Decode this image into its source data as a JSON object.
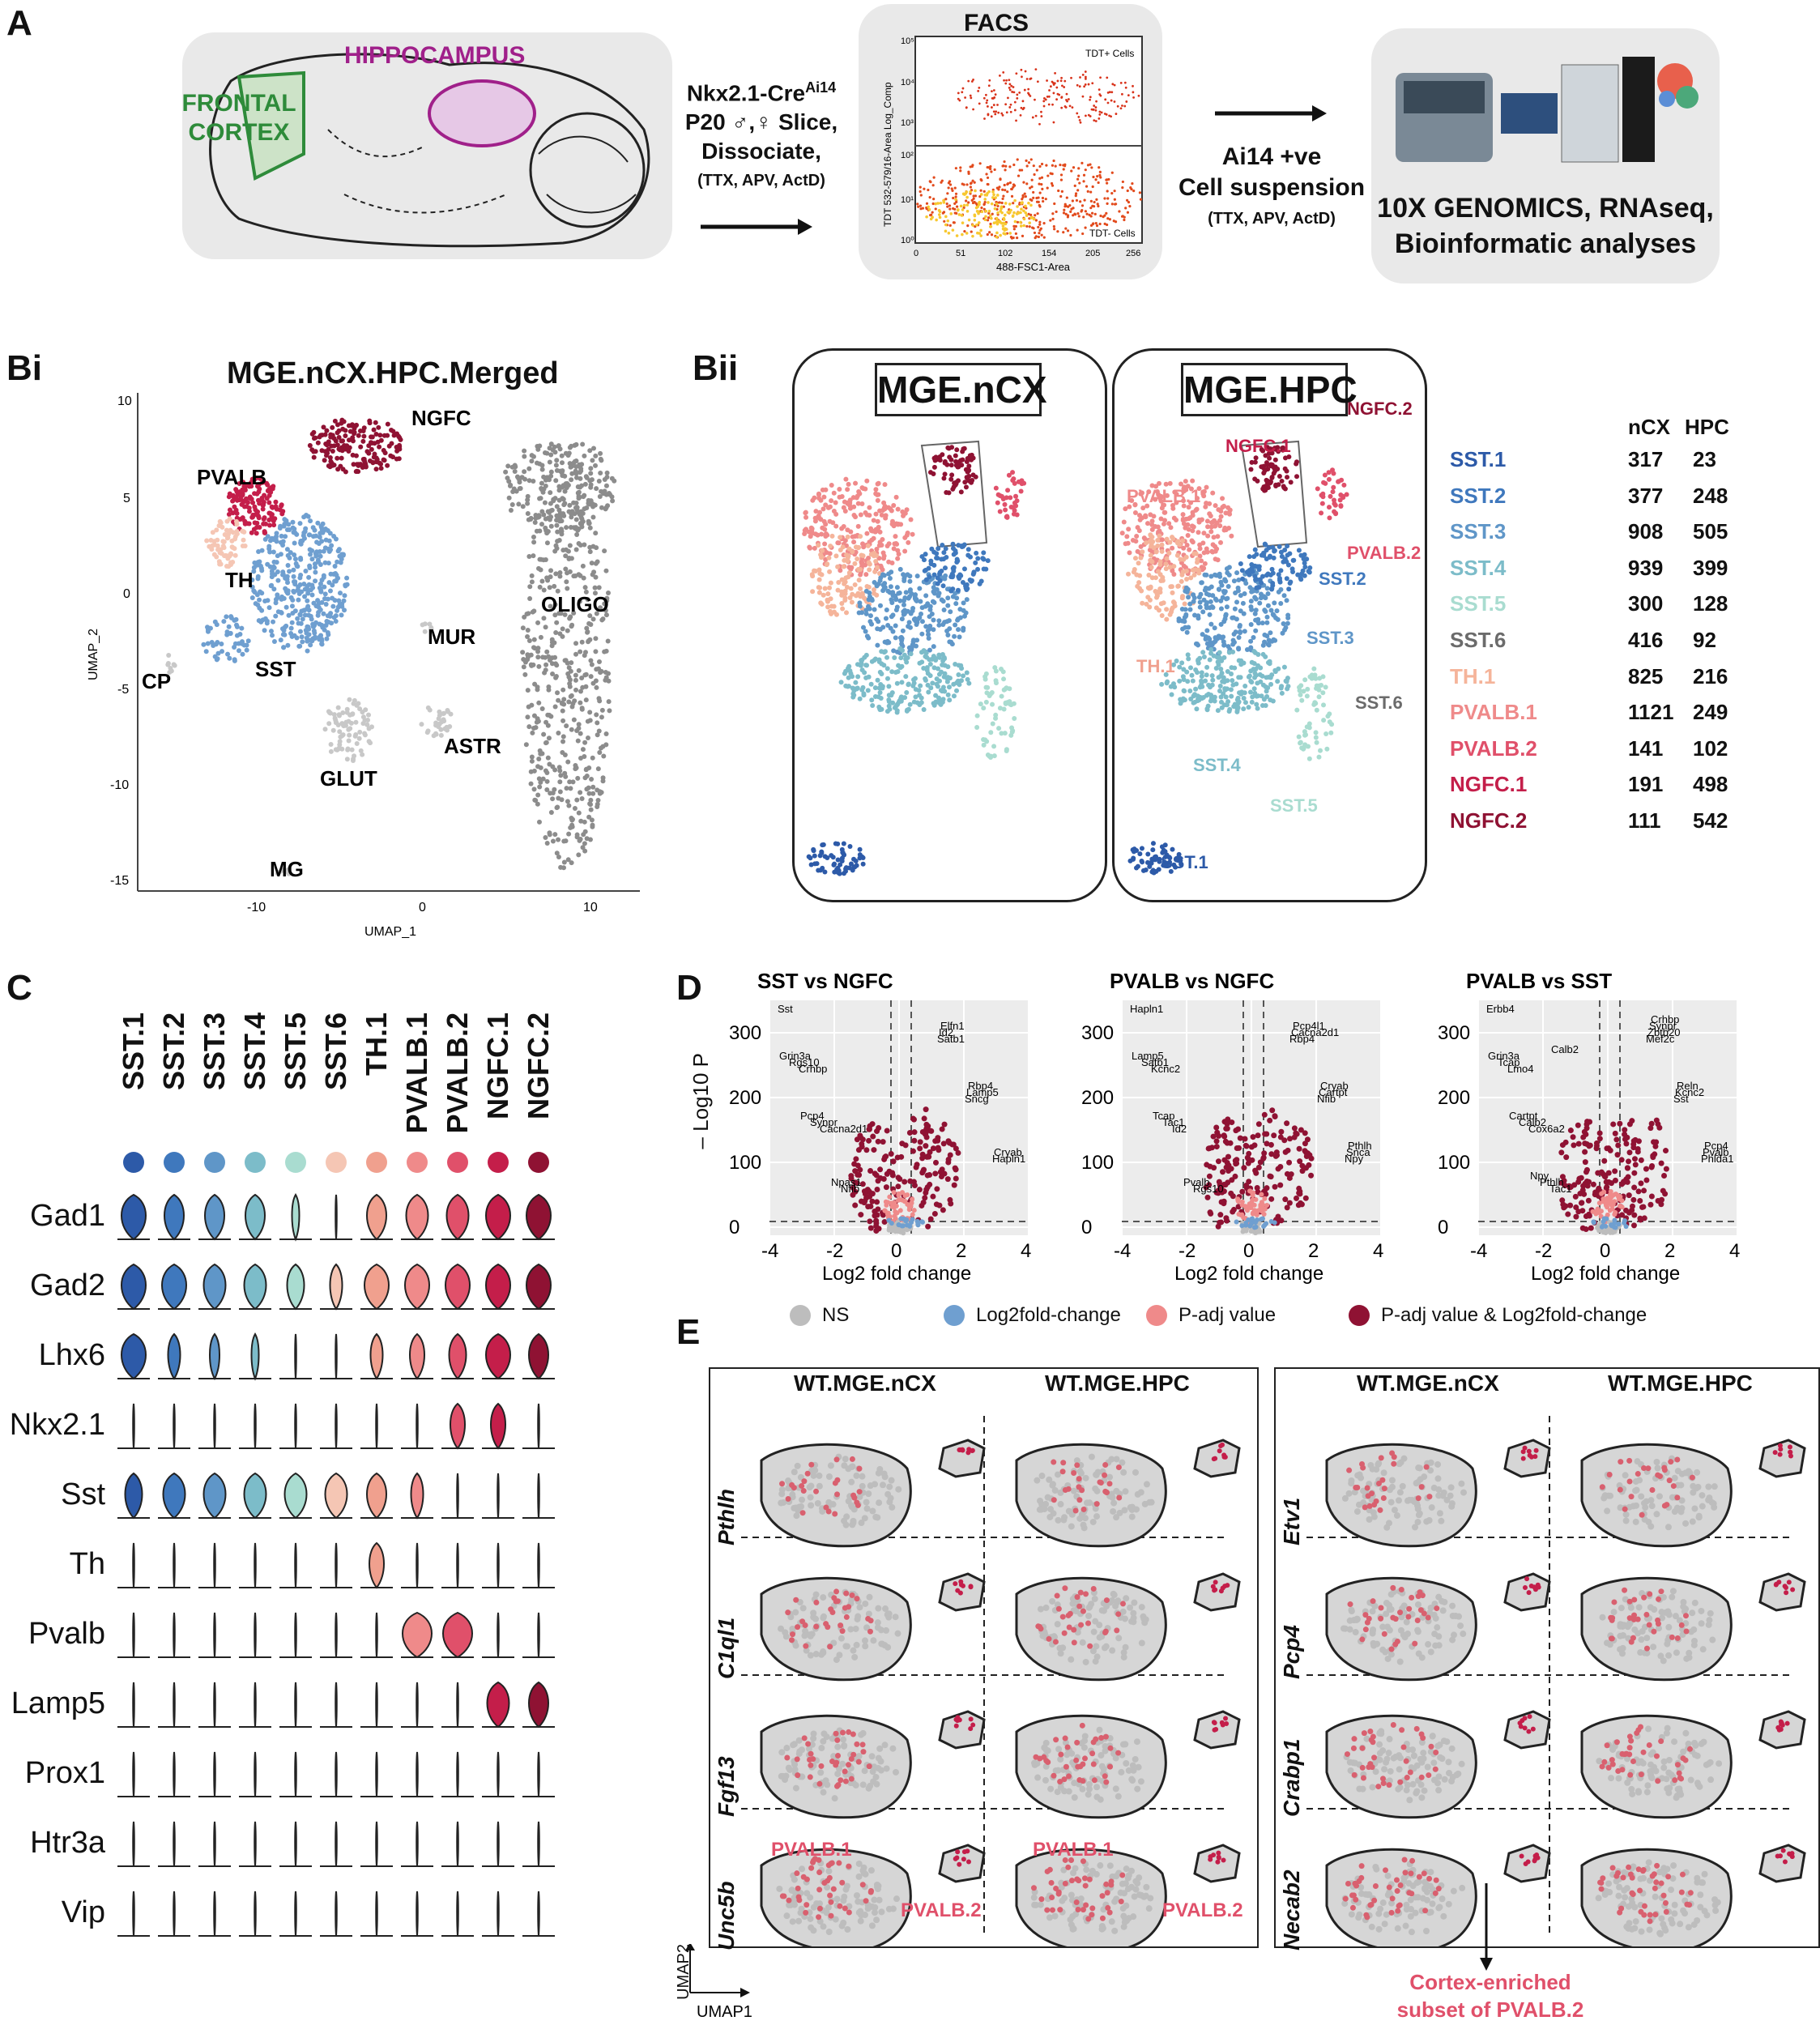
{
  "panelA": {
    "label": "A",
    "frontal": "FRONTAL",
    "cortex": "CORTEX",
    "hippocampus": "HIPPOCAMPUS",
    "protocol": [
      "Nkx2.1-Cre",
      "Ai14",
      "P20 ♂,♀ Slice,",
      "Dissociate,",
      "(TTX, APV, ActD)"
    ],
    "facs_title": "FACS",
    "facs_gate": "TDT+ Cells",
    "facs_neg": "TDT- Cells",
    "facs_xlabel": "488-FSC1-Area",
    "facs_ylabel": "TDT 532-579/16-Area Log_Comp",
    "facs_xticks": [
      "0",
      "51",
      "102",
      "154",
      "205",
      "256"
    ],
    "facs_yticks": [
      "10⁵",
      "10⁴",
      "10³",
      "10²",
      "10¹",
      "10⁰"
    ],
    "suspension": [
      "Ai14 +ve",
      "Cell suspension",
      "(TTX, APV, ActD)"
    ],
    "genomics": [
      "10X GENOMICS, RNAseq,",
      "Bioinformatic analyses"
    ]
  },
  "panelBi": {
    "label": "Bi",
    "title": "MGE.nCX.HPC.Merged",
    "xlabel": "UMAP_1",
    "ylabel": "UMAP_2",
    "xticks": [
      "-10",
      "0",
      "10"
    ],
    "yticks": [
      "10",
      "5",
      "0",
      "-5",
      "-10",
      "-15"
    ],
    "clusters": [
      "NGFC",
      "PVALB",
      "TH",
      "SST",
      "MUR",
      "OLIGO",
      "CP",
      "ASTR",
      "GLUT",
      "MG"
    ]
  },
  "panelBii": {
    "label": "Bii",
    "left_title": "MGE.nCX",
    "right_title": "MGE.HPC",
    "hpc_labels": [
      "NGFC.2",
      "NGFC.1",
      "PVALB.1",
      "PVALB.2",
      "SST.2",
      "SST.3",
      "TH.1",
      "SST.6",
      "SST.4",
      "SST.5",
      "SST.1"
    ],
    "table_headers": [
      "nCX",
      "HPC"
    ],
    "table": [
      {
        "name": "SST.1",
        "ncx": "317",
        "hpc": "23",
        "color": "#2d5aa8"
      },
      {
        "name": "SST.2",
        "ncx": "377",
        "hpc": "248",
        "color": "#3f78bd"
      },
      {
        "name": "SST.3",
        "ncx": "908",
        "hpc": "505",
        "color": "#5f96c8"
      },
      {
        "name": "SST.4",
        "ncx": "939",
        "hpc": "399",
        "color": "#7cbcc9"
      },
      {
        "name": "SST.5",
        "ncx": "300",
        "hpc": "128",
        "color": "#a9dcd0"
      },
      {
        "name": "SST.6",
        "ncx": "416",
        "hpc": "92",
        "color": "#6b6b6b"
      },
      {
        "name": "TH.1",
        "ncx": "825",
        "hpc": "216",
        "color": "#f5b49a"
      },
      {
        "name": "PVALB.1",
        "ncx": "1121",
        "hpc": "249",
        "color": "#ef8a8a"
      },
      {
        "name": "PVALB.2",
        "ncx": "141",
        "hpc": "102",
        "color": "#e0506a"
      },
      {
        "name": "NGFC.1",
        "ncx": "191",
        "hpc": "498",
        "color": "#c41e4a"
      },
      {
        "name": "NGFC.2",
        "ncx": "111",
        "hpc": "542",
        "color": "#8f1233"
      }
    ]
  },
  "panelC": {
    "label": "C",
    "clusters": [
      "SST.1",
      "SST.2",
      "SST.3",
      "SST.4",
      "SST.5",
      "SST.6",
      "TH.1",
      "PVALB.1",
      "PVALB.2",
      "NGFC.1",
      "NGFC.2"
    ],
    "dot_colors": [
      "#2d5aa8",
      "#3f78bd",
      "#5f96c8",
      "#7cbcc9",
      "#a9dcd0",
      "#f5c6b4",
      "#f0a08e",
      "#ef8a8a",
      "#e0506a",
      "#c41e4a",
      "#8f1233"
    ],
    "genes": [
      "Gad1",
      "Gad2",
      "Lhx6",
      "Nkx2.1",
      "Sst",
      "Th",
      "Pvalb",
      "Lamp5",
      "Prox1",
      "Htr3a",
      "Vip"
    ]
  },
  "panelD": {
    "label": "D",
    "titles": [
      "SST vs NGFC",
      "PVALB vs NGFC",
      "PVALB vs SST"
    ],
    "ylabel": "– Log10 P",
    "xlabel": "Log2 fold change",
    "xticks": [
      "-4",
      "-2",
      "0",
      "2",
      "4"
    ],
    "yticks": [
      "300",
      "200",
      "100",
      "0"
    ],
    "genes1": [
      "Sst",
      "Satb1",
      "Crhbp",
      "Sncg",
      "Cacna2d1",
      "Hapln1",
      "Nfib",
      "Id2",
      "Rgs10",
      "Lamp5",
      "Synpr",
      "Cryab",
      "Npas1",
      "Elfn1",
      "Grin3a",
      "Rbp4",
      "Pcp4"
    ],
    "genes2": [
      "Hapln1",
      "Rbp4",
      "Kcnc2",
      "Nfib",
      "Id2",
      "Npy",
      "Rgs10",
      "Cacna2d1",
      "Satb1",
      "Cartpt",
      "Tac1",
      "Snca",
      "Pvalb",
      "Pcp4l1",
      "Lamp5",
      "Cryab",
      "Tcap",
      "Pthlh"
    ],
    "genes3": [
      "Erbb4",
      "Mef2c",
      "Lmo4",
      "Sst",
      "Cox6a2",
      "Phlda1",
      "Tac1",
      "Zbtb20",
      "Tcap",
      "Kcnc2",
      "Calb2",
      "Pvalb",
      "Pthlh",
      "Synpr",
      "Grin3a",
      "Reln",
      "Cartpt",
      "Pcp4",
      "Npy",
      "Crhbp",
      "Calb2"
    ],
    "legend": [
      "NS",
      "Log2fold-change",
      "P-adj value",
      "P-adj value & Log2fold-change"
    ],
    "legend_colors": [
      "#bdbdbd",
      "#6f9fd0",
      "#ef8a8a",
      "#8f1233"
    ]
  },
  "panelE": {
    "label": "E",
    "left_cols": [
      "WT.MGE.nCX",
      "WT.MGE.HPC"
    ],
    "right_cols": [
      "WT.MGE.nCX",
      "WT.MGE.HPC"
    ],
    "left_genes": [
      "Pthlh",
      "C1ql1",
      "Fgf13",
      "Unc5b"
    ],
    "right_genes": [
      "Etv1",
      "Pcp4",
      "Crabp1",
      "Necab2"
    ],
    "pv1": "PVALB.1",
    "pv2": "PVALB.2",
    "note": [
      "Cortex-enriched",
      "subset of PVALB.2"
    ],
    "axis_x": "UMAP1",
    "axis_y": "UMAP2"
  }
}
